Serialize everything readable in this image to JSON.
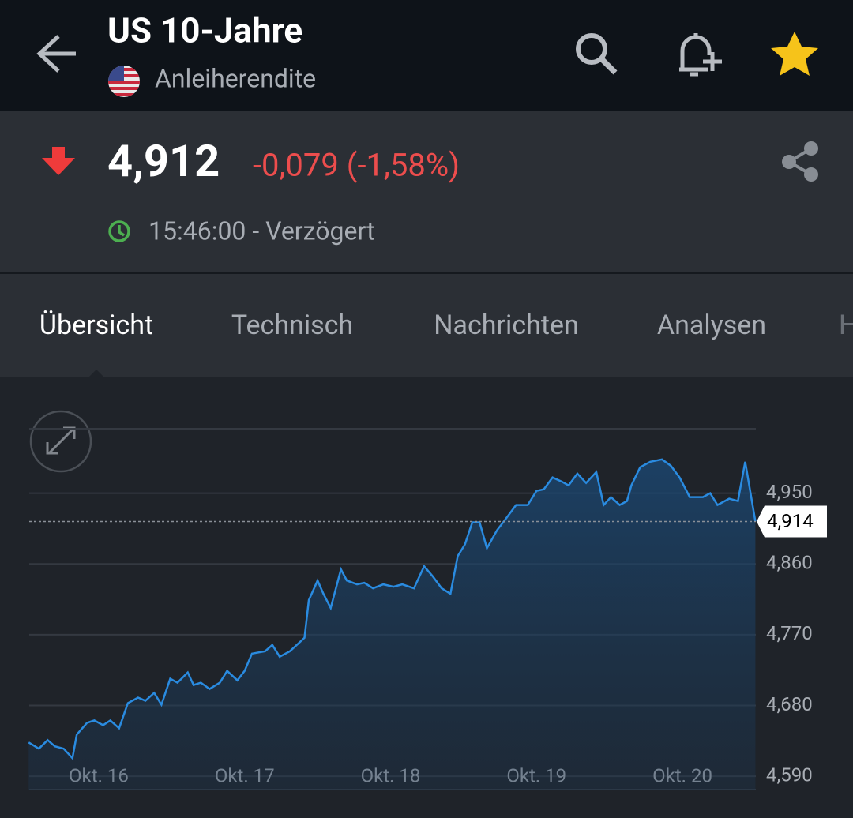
{
  "header": {
    "title": "US 10-Jahre",
    "subtitle": "Anleiherendite"
  },
  "quote": {
    "price": "4,912",
    "change": "-0,079 (-1,58%)",
    "time": "15:46:00 - Verzögert"
  },
  "tabs": [
    "Übersicht",
    "Technisch",
    "Nachrichten",
    "Analysen",
    "H"
  ],
  "chart_data": {
    "type": "line",
    "color": "#2a8be0",
    "grid": true,
    "x": [
      15.52,
      15.59,
      15.65,
      15.7,
      15.76,
      15.82,
      15.85,
      15.92,
      15.97,
      16.03,
      16.08,
      16.14,
      16.2,
      16.27,
      16.32,
      16.38,
      16.43,
      16.49,
      16.54,
      16.61,
      16.65,
      16.7,
      16.76,
      16.83,
      16.88,
      16.95,
      17.0,
      17.05,
      17.14,
      17.19,
      17.24,
      17.31,
      17.41,
      17.44,
      17.5,
      17.54,
      17.59,
      17.66,
      17.7,
      17.77,
      17.82,
      17.88,
      17.95,
      18.02,
      18.08,
      18.16,
      18.23,
      18.29,
      18.35,
      18.41,
      18.46,
      18.51,
      18.56,
      18.61,
      18.66,
      18.73,
      18.78,
      18.86,
      18.94,
      19.0,
      19.05,
      19.11,
      19.17,
      19.22,
      19.28,
      19.34,
      19.41,
      19.46,
      19.51,
      19.57,
      19.62,
      19.65,
      19.71,
      19.78,
      19.86,
      19.92,
      19.98,
      20.05,
      20.14,
      20.19,
      20.24,
      20.32,
      20.38,
      20.43,
      20.5
    ],
    "values": [
      4.633,
      4.625,
      4.636,
      4.628,
      4.625,
      4.613,
      4.643,
      4.658,
      4.661,
      4.655,
      4.661,
      4.651,
      4.683,
      4.69,
      4.686,
      4.696,
      4.681,
      4.714,
      4.709,
      4.722,
      4.706,
      4.709,
      4.701,
      4.709,
      4.724,
      4.712,
      4.724,
      4.746,
      4.749,
      4.757,
      4.742,
      4.749,
      4.766,
      4.814,
      4.839,
      4.822,
      4.804,
      4.853,
      4.839,
      4.834,
      4.836,
      4.829,
      4.834,
      4.831,
      4.834,
      4.829,
      4.857,
      4.844,
      4.829,
      4.822,
      4.87,
      4.885,
      4.913,
      4.913,
      4.88,
      4.903,
      4.915,
      4.935,
      4.935,
      4.953,
      4.955,
      4.97,
      4.965,
      4.96,
      4.975,
      4.963,
      4.977,
      4.935,
      4.945,
      4.935,
      4.94,
      4.96,
      4.983,
      4.99,
      4.993,
      4.985,
      4.97,
      4.945,
      4.945,
      4.95,
      4.935,
      4.943,
      4.94,
      4.99,
      4.914
    ],
    "xlim": [
      15.524,
      20.503
    ],
    "xticks": [
      {
        "value": 16,
        "label": "Okt. 16"
      },
      {
        "value": 17,
        "label": "Okt. 17"
      },
      {
        "value": 18,
        "label": "Okt. 18"
      },
      {
        "value": 19,
        "label": "Okt. 19"
      },
      {
        "value": 20,
        "label": "Okt. 20"
      }
    ],
    "ylim": [
      4.573,
      5.032
    ],
    "yticks": [
      {
        "value": 4.59,
        "label": "4,590"
      },
      {
        "value": 4.68,
        "label": "4,680"
      },
      {
        "value": 4.77,
        "label": "4,770"
      },
      {
        "value": 4.86,
        "label": "4,860"
      },
      {
        "value": 4.95,
        "label": "4,950"
      }
    ],
    "last_label": {
      "value": 4.914,
      "label": "4,914"
    }
  }
}
